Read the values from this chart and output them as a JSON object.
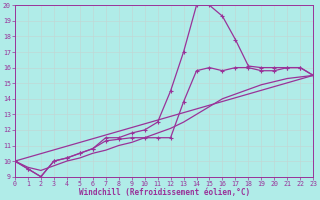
{
  "xlabel": "Windchill (Refroidissement éolien,°C)",
  "bg_color": "#b0ece8",
  "grid_color": "#c0d8d6",
  "line_color": "#993399",
  "xlim": [
    0,
    23
  ],
  "ylim": [
    9,
    20
  ],
  "yticks": [
    9,
    10,
    11,
    12,
    13,
    14,
    15,
    16,
    17,
    18,
    19,
    20
  ],
  "xticks": [
    0,
    1,
    2,
    3,
    4,
    5,
    6,
    7,
    8,
    9,
    10,
    11,
    12,
    13,
    14,
    15,
    16,
    17,
    18,
    19,
    20,
    21,
    22,
    23
  ],
  "peak_x": [
    0,
    1,
    2,
    3,
    4,
    5,
    6,
    7,
    8,
    9,
    10,
    11,
    12,
    13,
    14,
    15,
    16,
    17,
    18,
    19,
    20,
    21,
    22,
    23
  ],
  "peak_y": [
    10,
    9.5,
    9.0,
    10.0,
    10.2,
    10.5,
    10.8,
    11.5,
    11.5,
    11.8,
    12.0,
    12.5,
    14.5,
    17.0,
    20.0,
    20.0,
    19.3,
    17.8,
    16.1,
    16.0,
    16.0,
    16.0,
    16.0,
    15.5
  ],
  "flat_x": [
    0,
    1,
    2,
    3,
    4,
    5,
    6,
    7,
    8,
    9,
    10,
    11,
    12,
    13,
    14,
    15,
    16,
    17,
    18,
    19,
    20,
    21,
    22,
    23
  ],
  "flat_y": [
    10,
    9.5,
    9.0,
    10.0,
    10.2,
    10.5,
    10.8,
    11.3,
    11.4,
    11.5,
    11.5,
    11.5,
    11.5,
    13.8,
    15.8,
    16.0,
    15.8,
    16.0,
    16.0,
    15.8,
    15.8,
    16.0,
    16.0,
    15.5
  ],
  "smooth_x": [
    0,
    1,
    2,
    3,
    4,
    5,
    6,
    7,
    8,
    9,
    10,
    11,
    12,
    13,
    14,
    15,
    16,
    17,
    18,
    19,
    20,
    21,
    22,
    23
  ],
  "smooth_y": [
    10.0,
    9.6,
    9.4,
    9.7,
    10.0,
    10.2,
    10.5,
    10.7,
    11.0,
    11.2,
    11.5,
    11.8,
    12.1,
    12.5,
    13.0,
    13.5,
    14.0,
    14.3,
    14.6,
    14.9,
    15.1,
    15.3,
    15.4,
    15.5
  ],
  "line_x": [
    0,
    23
  ],
  "line_y": [
    10.0,
    15.5
  ]
}
